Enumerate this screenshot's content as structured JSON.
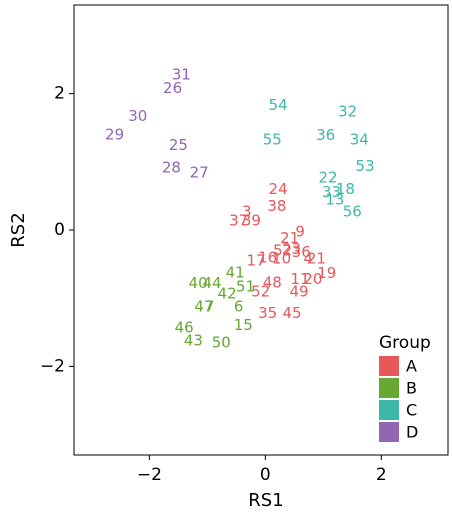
{
  "chart_data": {
    "type": "scatter",
    "xlabel": "RS1",
    "ylabel": "RS2",
    "xlim": [
      -3.3,
      3.15
    ],
    "ylim": [
      -3.3,
      3.3
    ],
    "x_ticks": [
      -2,
      0,
      2
    ],
    "y_ticks": [
      -2,
      0,
      2
    ],
    "x_tick_labels": [
      "−2",
      "0",
      "2"
    ],
    "y_tick_labels": [
      "−2",
      "0",
      "2"
    ],
    "grid": false,
    "legend": {
      "title": "Group",
      "position": "bottom-right",
      "entries": [
        {
          "name": "A",
          "color": "#E8575A"
        },
        {
          "name": "B",
          "color": "#66A832"
        },
        {
          "name": "C",
          "color": "#3DB8A8"
        },
        {
          "name": "D",
          "color": "#9366B0"
        }
      ]
    },
    "points": [
      {
        "label": "31",
        "group": "D",
        "x": -1.45,
        "y": 2.28
      },
      {
        "label": "26",
        "group": "D",
        "x": -1.6,
        "y": 2.08
      },
      {
        "label": "30",
        "group": "D",
        "x": -2.2,
        "y": 1.67
      },
      {
        "label": "29",
        "group": "D",
        "x": -2.6,
        "y": 1.4
      },
      {
        "label": "25",
        "group": "D",
        "x": -1.5,
        "y": 1.25
      },
      {
        "label": "28",
        "group": "D",
        "x": -1.62,
        "y": 0.92
      },
      {
        "label": "27",
        "group": "D",
        "x": -1.14,
        "y": 0.84
      },
      {
        "label": "54",
        "group": "C",
        "x": 0.22,
        "y": 1.83
      },
      {
        "label": "32",
        "group": "C",
        "x": 1.42,
        "y": 1.74
      },
      {
        "label": "36",
        "group": "C",
        "x": 1.04,
        "y": 1.39
      },
      {
        "label": "34",
        "group": "C",
        "x": 1.62,
        "y": 1.33
      },
      {
        "label": "55",
        "group": "C",
        "x": 0.12,
        "y": 1.33
      },
      {
        "label": "53",
        "group": "C",
        "x": 1.72,
        "y": 0.94
      },
      {
        "label": "22",
        "group": "C",
        "x": 1.08,
        "y": 0.77
      },
      {
        "label": "18",
        "group": "C",
        "x": 1.38,
        "y": 0.6
      },
      {
        "label": "33",
        "group": "C",
        "x": 1.14,
        "y": 0.56
      },
      {
        "label": "13",
        "group": "C",
        "x": 1.2,
        "y": 0.45
      },
      {
        "label": "56",
        "group": "C",
        "x": 1.5,
        "y": 0.27
      },
      {
        "label": "24",
        "group": "A",
        "x": 0.22,
        "y": 0.6
      },
      {
        "label": "38",
        "group": "A",
        "x": 0.2,
        "y": 0.35
      },
      {
        "label": "3",
        "group": "A",
        "x": -0.32,
        "y": 0.27
      },
      {
        "label": "37",
        "group": "A",
        "x": -0.46,
        "y": 0.14
      },
      {
        "label": "39",
        "group": "A",
        "x": -0.24,
        "y": 0.14
      },
      {
        "label": "9",
        "group": "A",
        "x": 0.6,
        "y": -0.02
      },
      {
        "label": "21",
        "group": "A",
        "x": 0.42,
        "y": -0.12
      },
      {
        "label": "52",
        "group": "A",
        "x": 0.3,
        "y": -0.3
      },
      {
        "label": "23",
        "group": "A",
        "x": 0.45,
        "y": -0.28
      },
      {
        "label": "36",
        "group": "A",
        "x": 0.62,
        "y": -0.32
      },
      {
        "label": "16",
        "group": "A",
        "x": 0.04,
        "y": -0.4
      },
      {
        "label": "10",
        "group": "A",
        "x": 0.28,
        "y": -0.42
      },
      {
        "label": "17",
        "group": "A",
        "x": -0.16,
        "y": -0.45
      },
      {
        "label": "4",
        "group": "A",
        "x": 0.74,
        "y": -0.42
      },
      {
        "label": "21",
        "group": "A",
        "x": 0.88,
        "y": -0.42
      },
      {
        "label": "19",
        "group": "A",
        "x": 1.06,
        "y": -0.63
      },
      {
        "label": "11",
        "group": "A",
        "x": 0.6,
        "y": -0.72
      },
      {
        "label": "20",
        "group": "A",
        "x": 0.82,
        "y": -0.72
      },
      {
        "label": "48",
        "group": "A",
        "x": 0.12,
        "y": -0.77
      },
      {
        "label": "49",
        "group": "A",
        "x": 0.58,
        "y": -0.9
      },
      {
        "label": "52",
        "group": "A",
        "x": -0.08,
        "y": -0.9
      },
      {
        "label": "35",
        "group": "A",
        "x": 0.04,
        "y": -1.22
      },
      {
        "label": "45",
        "group": "A",
        "x": 0.46,
        "y": -1.22
      },
      {
        "label": "41",
        "group": "B",
        "x": -0.52,
        "y": -0.62
      },
      {
        "label": "40",
        "group": "B",
        "x": -1.16,
        "y": -0.78
      },
      {
        "label": "44",
        "group": "B",
        "x": -0.92,
        "y": -0.78
      },
      {
        "label": "51",
        "group": "B",
        "x": -0.34,
        "y": -0.83
      },
      {
        "label": "42",
        "group": "B",
        "x": -0.66,
        "y": -0.93
      },
      {
        "label": "6",
        "group": "B",
        "x": -0.46,
        "y": -1.12
      },
      {
        "label": "47",
        "group": "B",
        "x": -1.06,
        "y": -1.12
      },
      {
        "label": "7",
        "group": "B",
        "x": -0.96,
        "y": -1.12
      },
      {
        "label": "15",
        "group": "B",
        "x": -0.38,
        "y": -1.39
      },
      {
        "label": "46",
        "group": "B",
        "x": -1.4,
        "y": -1.43
      },
      {
        "label": "43",
        "group": "B",
        "x": -1.24,
        "y": -1.62
      },
      {
        "label": "50",
        "group": "B",
        "x": -0.76,
        "y": -1.65
      }
    ]
  }
}
